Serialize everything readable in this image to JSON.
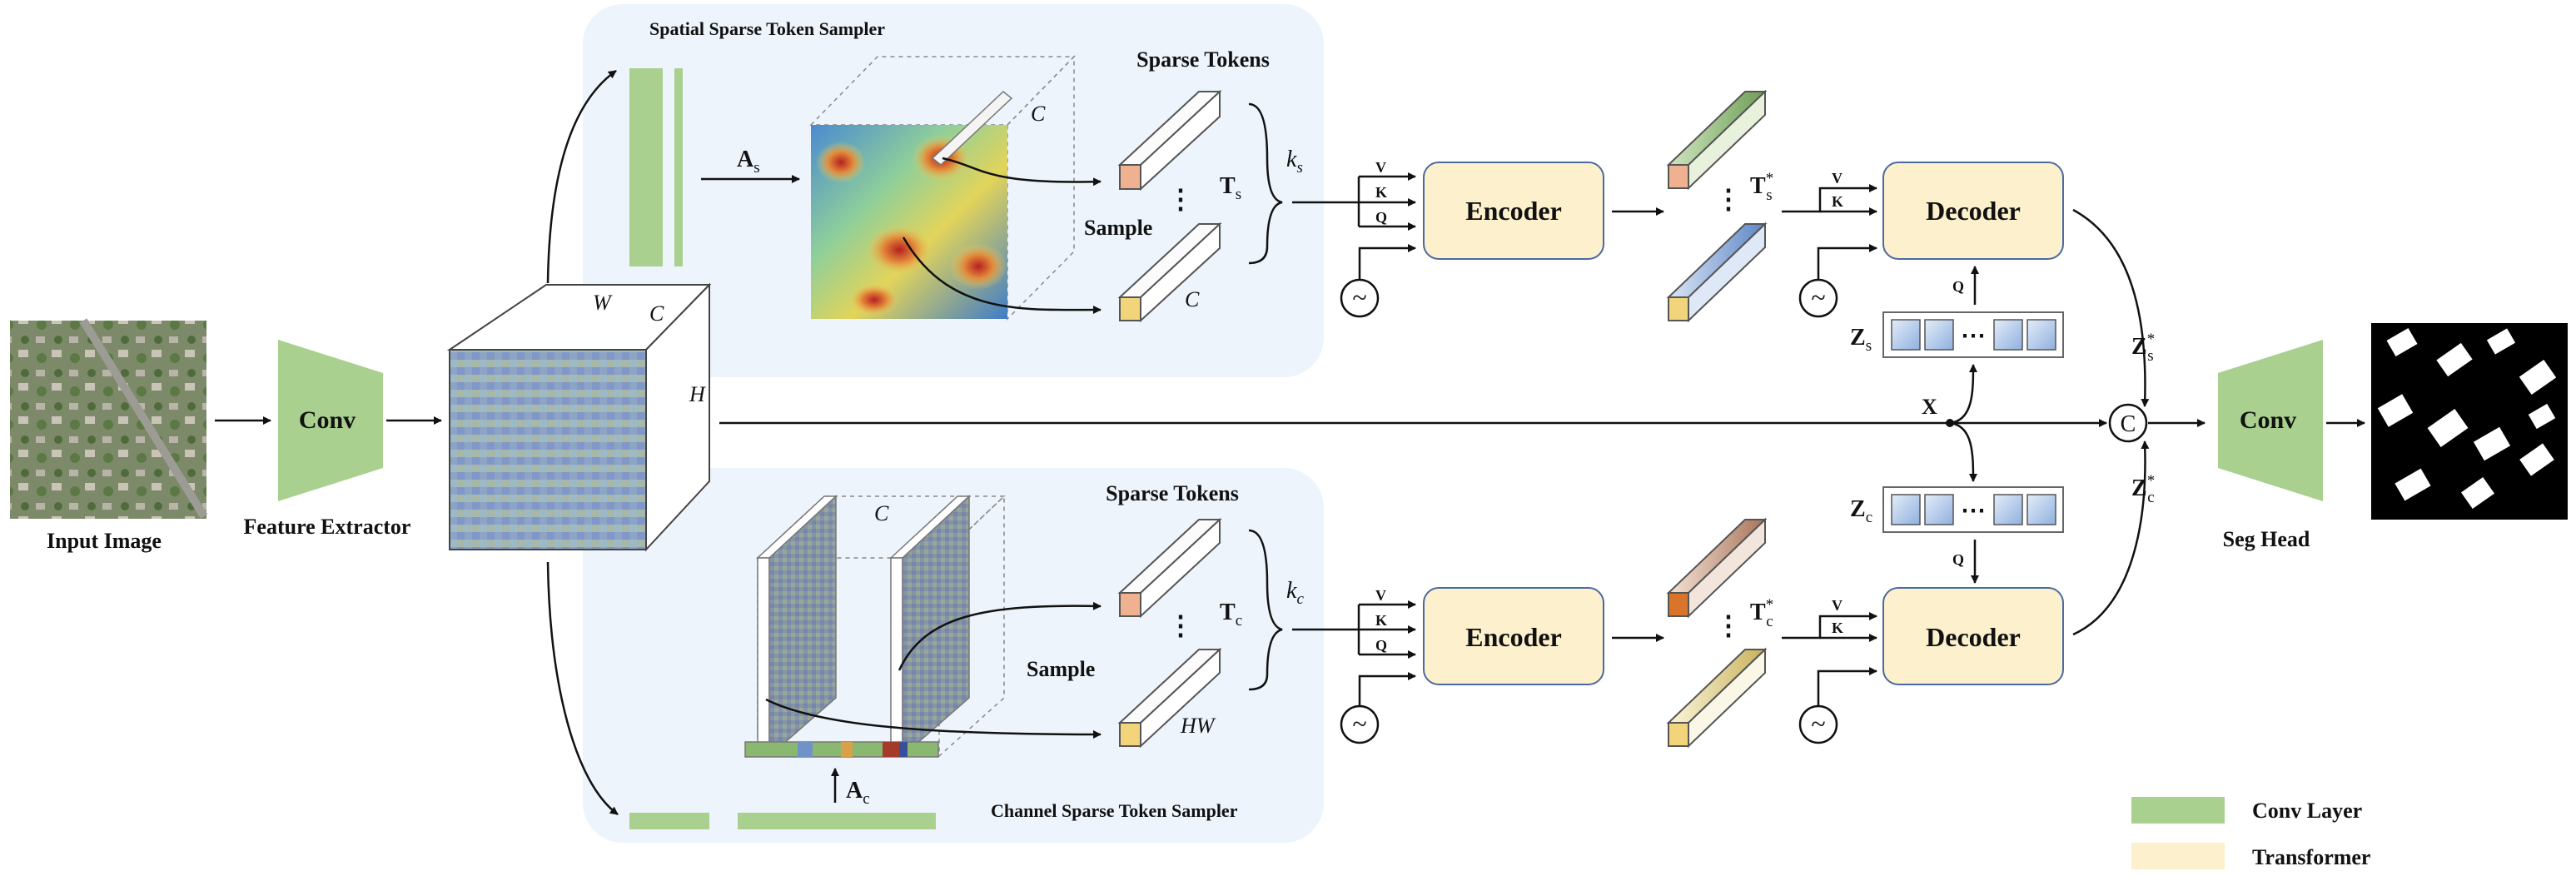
{
  "input": {
    "caption": "Input Image"
  },
  "feature_extractor": {
    "conv_label": "Conv",
    "caption": "Feature Extractor",
    "dim_w": "W",
    "dim_c": "C",
    "dim_h": "H"
  },
  "spatial": {
    "title": "Spatial Sparse Token Sampler",
    "attention_label": "A",
    "attention_sub": "s",
    "map_dim_c": "C",
    "sparse_tokens_title": "Sparse Tokens",
    "sample_label": "Sample",
    "token_label": "T",
    "token_sub": "s",
    "k_label": "k",
    "k_sub": "s",
    "token_dim": "C",
    "dots": "⋮"
  },
  "channel": {
    "title": "Channel Sparse Token Sampler",
    "attention_label": "A",
    "attention_sub": "c",
    "map_dim_c": "C",
    "sparse_tokens_title": "Sparse Tokens",
    "sample_label": "Sample",
    "token_label": "T",
    "token_sub": "c",
    "k_label": "k",
    "k_sub": "c",
    "token_dim": "HW",
    "dots": "⋮"
  },
  "encoder": {
    "label": "Encoder",
    "v": "V",
    "k": "K",
    "q": "Q",
    "pos_symbol": "~"
  },
  "decoder": {
    "label": "Decoder",
    "v": "V",
    "k": "K",
    "q": "Q",
    "pos_symbol": "~"
  },
  "enc_out_spatial": {
    "label": "T",
    "sub": "s",
    "sup": "*",
    "dots": "⋮"
  },
  "enc_out_channel": {
    "label": "T",
    "sub": "c",
    "sup": "*",
    "dots": "⋮"
  },
  "queries": {
    "zs_label": "Z",
    "zs_sub": "s",
    "zc_label": "Z",
    "zc_sub": "c",
    "dots": "⋯",
    "x_label": "X"
  },
  "fusion": {
    "zs_out": "Z",
    "zs_out_sub": "s",
    "zs_out_sup": "*",
    "zc_out": "Z",
    "zc_out_sub": "c",
    "zc_out_sup": "*",
    "concat_symbol": "C"
  },
  "seg_head": {
    "conv_label": "Conv",
    "caption": "Seg Head"
  },
  "legend": {
    "items": [
      {
        "label": "Conv Layer",
        "color": "#a9d08e"
      },
      {
        "label": "Transformer",
        "color": "#fcf1cc"
      }
    ]
  },
  "colors": {
    "conv": "#a9d08e",
    "transformer": "#fcf1cc",
    "sampler_bg": "#edf4fc",
    "token_pale": "#fbfbfb",
    "token_ends": [
      "#efb18f",
      "#f2d57a",
      "#d9752a"
    ]
  }
}
